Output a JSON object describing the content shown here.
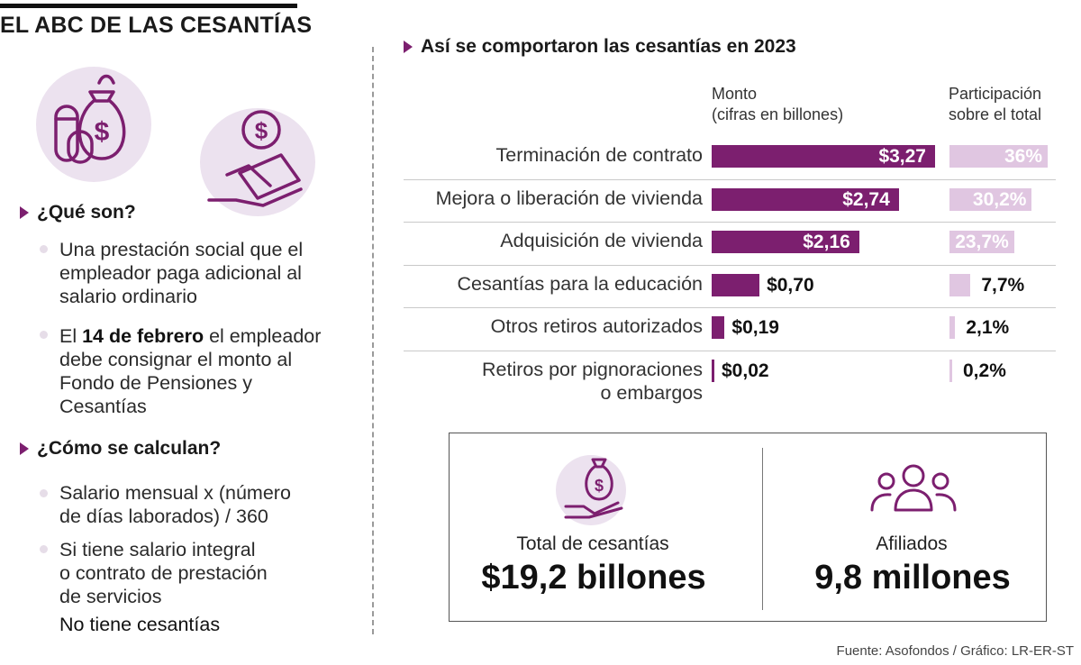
{
  "title": "EL ABC DE LAS CESANTÍAS",
  "icons": {
    "money_bag_coins": "money-bag-coins-icon",
    "hand_cash": "hand-cash-icon",
    "hand_bag": "hand-money-bag-icon",
    "people": "people-group-icon"
  },
  "colors": {
    "bar": "#7c1f6f",
    "share_bar": "#e0c6e1",
    "icon_bg": "#ece2ef"
  },
  "left": {
    "section1": {
      "heading": "¿Qué son?",
      "bullets": [
        {
          "lines": [
            "Una prestación social que el",
            "empleador paga adicional al",
            "salario ordinario"
          ]
        },
        {
          "bold": "14 de febrero",
          "pre": "El ",
          "post": " el empleador",
          "lines": [
            "debe consignar el monto al",
            "Fondo de Pensiones y",
            "Cesantías"
          ]
        }
      ]
    },
    "section2": {
      "heading": "¿Cómo se calculan?",
      "bullets": [
        {
          "lines": [
            "Salario mensual x (número",
            "de días laborados) / 360"
          ]
        },
        {
          "lines": [
            "Si tiene salario integral",
            "o contrato de prestación",
            "de servicios"
          ]
        }
      ],
      "note": "No tiene cesantías"
    }
  },
  "chart_data": {
    "type": "bar",
    "title": "Así se comportaron las cesantías en 2023",
    "column_headers": {
      "amount": [
        "Monto",
        "(cifras en billones)"
      ],
      "share": [
        "Participación",
        "sobre el total"
      ]
    },
    "categories": [
      [
        "Terminación de contrato"
      ],
      [
        "Mejora o liberación de vivienda"
      ],
      [
        "Adquisición de vivienda"
      ],
      [
        "Cesantías para la educación"
      ],
      [
        "Otros retiros autorizados"
      ],
      [
        "Retiros por pignoraciones",
        "o embargos"
      ]
    ],
    "series": [
      {
        "values": [
          3.27,
          2.74,
          2.16,
          0.7,
          0.19,
          0.02
        ],
        "labels": [
          "$3,27",
          "$2,74",
          "$2,16",
          "$0,70",
          "$0,19",
          "$0,02"
        ]
      },
      {
        "values": [
          36,
          30.2,
          23.7,
          7.7,
          2.1,
          0.2
        ],
        "labels": [
          "36%",
          "30,2%",
          "23,7%",
          "7,7%",
          "2,1%",
          "0,2%"
        ]
      }
    ]
  },
  "summary": {
    "total_label": "Total de cesantías",
    "total_value": "$19,2 billones",
    "members_label": "Afiliados",
    "members_value": "9,8 millones"
  },
  "source": "Fuente: Asofondos / Gráfico: LR-ER-ST"
}
